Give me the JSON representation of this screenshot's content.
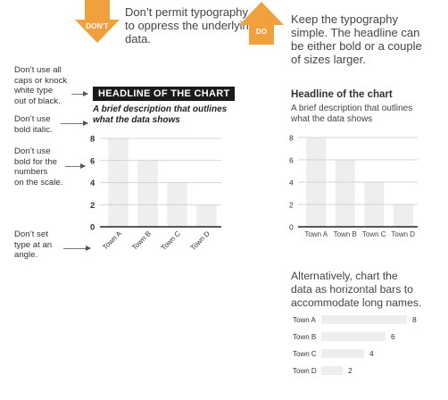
{
  "dont": {
    "badge": "DON'T",
    "intro": [
      "Don’t permit typography",
      "to oppress the underlying",
      "data."
    ],
    "notes": [
      [
        "Don’t use all",
        "caps or knock",
        "white type",
        "out of black."
      ],
      [
        "Don’t use",
        "bold italic."
      ],
      [
        "Don’t use",
        "bold for the",
        "numbers",
        "on the scale."
      ],
      [
        "Don’t set",
        "type at an",
        "angle."
      ]
    ],
    "headline": "HEADLINE OF THE CHART",
    "subhead": [
      "A brief description that outlines",
      "what the data shows"
    ]
  },
  "do": {
    "badge": "DO",
    "intro": [
      "Keep the typography",
      "simple. The headline can",
      "be either bold or a couple",
      "of sizes larger."
    ],
    "headline": "Headline of the chart",
    "subhead": [
      "A brief description that outlines",
      "what the data shows"
    ],
    "alt_text": [
      "Alternatively, chart the",
      "data as horizontal bars to",
      "accommodate long names."
    ]
  },
  "colors": {
    "accent": "#f0a03c",
    "bar": "#eeeeee",
    "grid": "#c8c8c8",
    "knockout": "#1a1a1a"
  },
  "chart_data": [
    {
      "type": "bar",
      "chart": "dont",
      "categories": [
        "Town A",
        "Town B",
        "Town C",
        "Town D"
      ],
      "values": [
        8,
        6,
        4,
        2
      ],
      "ylim": [
        0,
        8
      ],
      "yticks": [
        0,
        2,
        4,
        6,
        8
      ],
      "grid": true
    },
    {
      "type": "bar",
      "chart": "do",
      "categories": [
        "Town A",
        "Town B",
        "Town C",
        "Town D"
      ],
      "values": [
        8,
        6,
        4,
        2
      ],
      "ylim": [
        0,
        8
      ],
      "yticks": [
        0,
        2,
        4,
        6,
        8
      ],
      "grid": true
    },
    {
      "type": "bar",
      "chart": "do-horizontal",
      "orientation": "horizontal",
      "categories": [
        "Town A",
        "Town B",
        "Town C",
        "Town D"
      ],
      "values": [
        8,
        6,
        4,
        2
      ],
      "data_labels": [
        "8",
        "6",
        "4",
        "2"
      ]
    }
  ]
}
